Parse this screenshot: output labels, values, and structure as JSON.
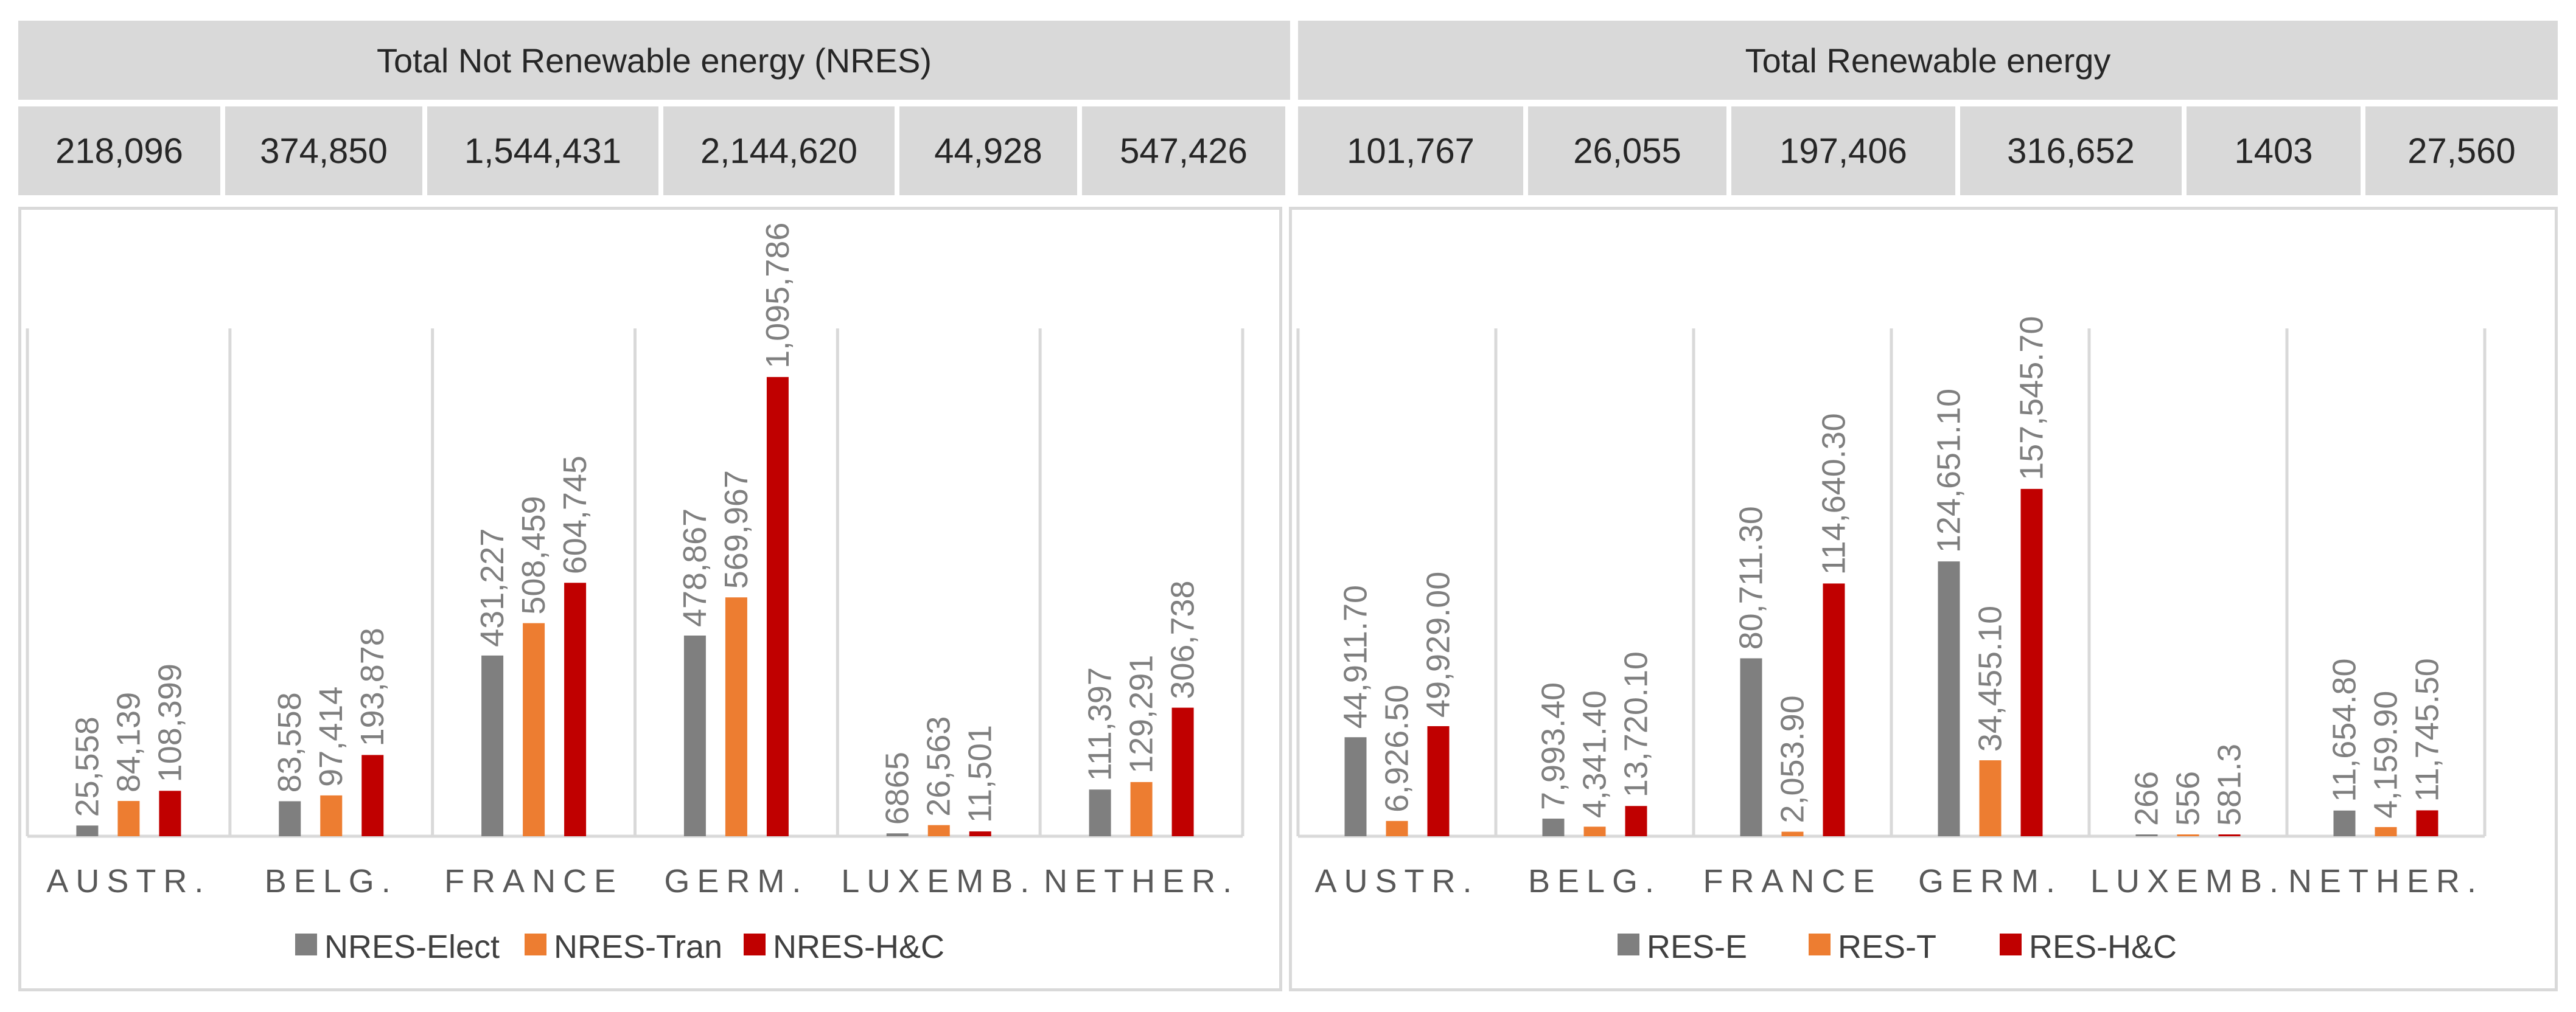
{
  "headers": {
    "nres_title": "Total Not Renewable energy (NRES)",
    "res_title": "Total Renewable energy"
  },
  "totals": {
    "nres": [
      "218,096",
      "374,850",
      "1,544,431",
      "2,144,620",
      "44,928",
      "547,426"
    ],
    "res": [
      "101,767",
      "26,055",
      "197,406",
      "316,652",
      "1403",
      "27,560"
    ]
  },
  "chart_data": [
    {
      "type": "bar",
      "name": "nres",
      "categories": [
        "AUSTR.",
        "BELG.",
        "FRANCE",
        "GERM.",
        "LUXEMB.",
        "NETHER."
      ],
      "ylim": [
        0,
        1100000
      ],
      "series": [
        {
          "name": "NRES-Elect",
          "color": "#7f7f7f",
          "values": [
            25558,
            83558,
            431227,
            478867,
            6865,
            111397
          ],
          "labels": [
            "25,558",
            "83,558",
            "431,227",
            "478,867",
            "6865",
            "111,397"
          ]
        },
        {
          "name": "NRES-Tran",
          "color": "#ed7d31",
          "values": [
            84139,
            97414,
            508459,
            569967,
            26563,
            129291
          ],
          "labels": [
            "84,139",
            "97,414",
            "508,459",
            "569,967",
            "26,563",
            "129,291"
          ]
        },
        {
          "name": "NRES-H&C",
          "color": "#c00000",
          "values": [
            108399,
            193878,
            604745,
            1095786,
            11501,
            306738
          ],
          "labels": [
            "108,399",
            "193,878",
            "604,745",
            "1,095,786",
            "11,501",
            "306,738"
          ]
        }
      ]
    },
    {
      "type": "bar",
      "name": "res",
      "categories": [
        "AUSTR.",
        "BELG.",
        "FRANCE",
        "GERM.",
        "LUXEMB.",
        "NETHER."
      ],
      "ylim": [
        0,
        200000
      ],
      "series": [
        {
          "name": "RES-E",
          "color": "#7f7f7f",
          "values": [
            44911.7,
            7993.4,
            80711.3,
            124651.1,
            266,
            11654.8
          ],
          "labels": [
            "44,911.70",
            "7,993.40",
            "80,711.30",
            "124,651.10",
            "266",
            "11,654.80"
          ]
        },
        {
          "name": "RES-T",
          "color": "#ed7d31",
          "values": [
            6926.5,
            4341.4,
            2053.9,
            34455.1,
            556,
            4159.9
          ],
          "labels": [
            "6,926.50",
            "4,341.40",
            "2,053.90",
            "34,455.10",
            "556",
            "4,159.90"
          ]
        },
        {
          "name": "RES-H&C",
          "color": "#c00000",
          "values": [
            49929,
            13720.1,
            114640.3,
            157545.7,
            581.3,
            11745.5
          ],
          "labels": [
            "49,929.00",
            "13,720.10",
            "114,640.30",
            "157,545.70",
            "581.3",
            "11,745.50"
          ]
        }
      ]
    }
  ]
}
